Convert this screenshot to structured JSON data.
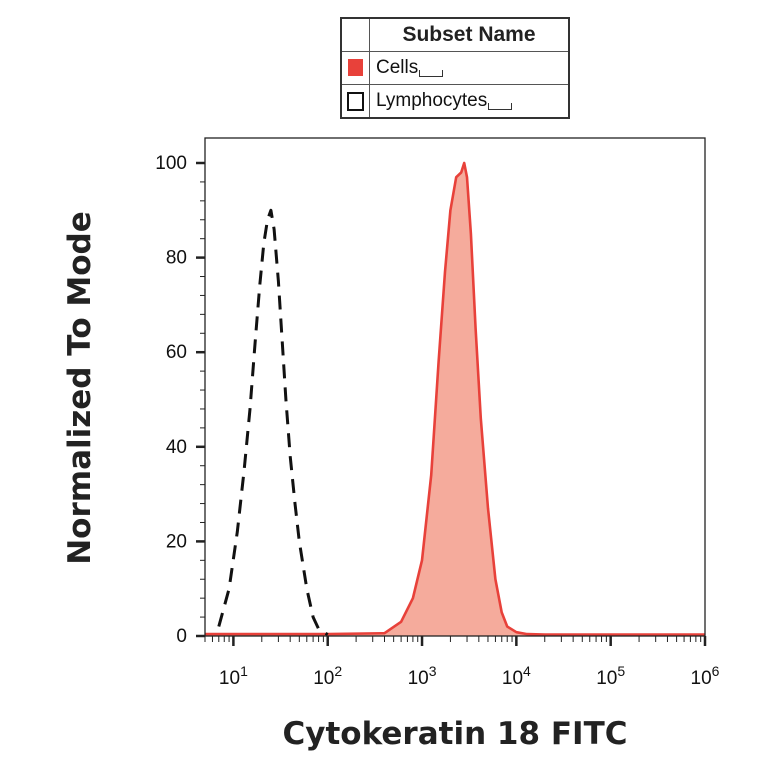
{
  "legend": {
    "header": "Subset Name",
    "items": [
      {
        "label": "Cells",
        "style": "filled",
        "color": "#e8413a"
      },
      {
        "label": "Lymphocytes",
        "style": "dashed-outline",
        "color": "#111111"
      }
    ]
  },
  "chart_data": {
    "type": "area",
    "xlabel": "Cytokeratin 18 FITC",
    "ylabel": "Normalized To Mode",
    "x_scale": "log",
    "xlim": [
      5,
      1000000
    ],
    "ylim": [
      0,
      105
    ],
    "grid": false,
    "legend_position": "top",
    "x_ticks": [
      {
        "base": "10",
        "exp": "1",
        "value": 10
      },
      {
        "base": "10",
        "exp": "2",
        "value": 100
      },
      {
        "base": "10",
        "exp": "3",
        "value": 1000
      },
      {
        "base": "10",
        "exp": "4",
        "value": 10000
      },
      {
        "base": "10",
        "exp": "5",
        "value": 100000
      },
      {
        "base": "10",
        "exp": "6",
        "value": 1000000
      }
    ],
    "y_ticks": [
      "0",
      "20",
      "40",
      "60",
      "80",
      "100"
    ],
    "series": [
      {
        "name": "Cells",
        "style": "filled",
        "fill_color": "#f5ab9c",
        "line_color": "#e8413a",
        "x": [
          5,
          100,
          400,
          600,
          800,
          1000,
          1250,
          1500,
          1750,
          2000,
          2300,
          2600,
          2800,
          3000,
          3300,
          3700,
          4200,
          5000,
          6000,
          7000,
          8000,
          10000,
          13000,
          20000,
          1000000
        ],
        "y": [
          0.4,
          0.4,
          0.6,
          3,
          8,
          16,
          34,
          58,
          77,
          90,
          97,
          98,
          100,
          97,
          85,
          65,
          46,
          27,
          12,
          5,
          2,
          0.8,
          0.4,
          0.3,
          0.3
        ]
      },
      {
        "name": "Lymphocytes",
        "style": "dashed-outline",
        "line_color": "#111111",
        "x": [
          7,
          9,
          11,
          13,
          15,
          17,
          19,
          21,
          23,
          25,
          27,
          30,
          33,
          36,
          40,
          45,
          50,
          60,
          70,
          80,
          100
        ],
        "y": [
          2,
          10,
          22,
          35,
          48,
          62,
          74,
          83,
          88,
          90,
          86,
          75,
          62,
          50,
          38,
          28,
          20,
          10,
          4,
          1.5,
          0.3
        ]
      }
    ]
  }
}
